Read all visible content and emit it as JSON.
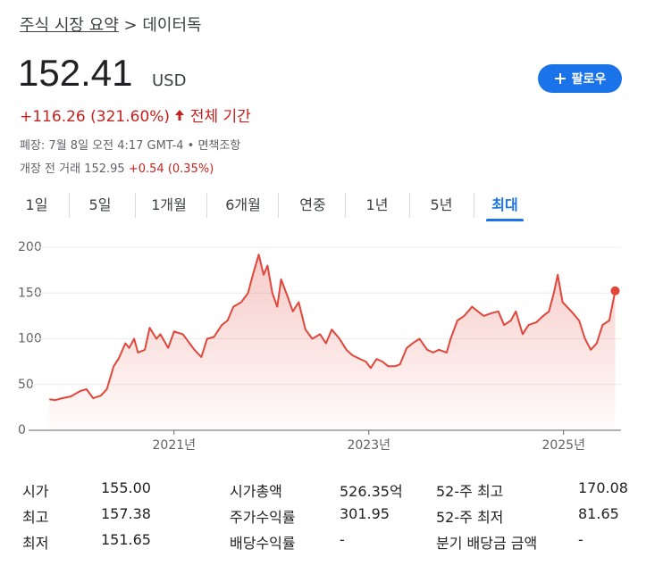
{
  "breadcrumb": {
    "parent": "주식 시장 요약",
    "separator": ">",
    "current": "데이터독"
  },
  "price": {
    "value": "152.41",
    "currency": "USD"
  },
  "follow_button": "팔로우",
  "change": {
    "amount": "+116.26",
    "percent": "(321.60%)",
    "period": "전체 기간"
  },
  "market_status": "폐장: 7월 8일 오전 4:17 GMT-4",
  "disclaimer": "면책조항",
  "premarket": {
    "label": "개장 전 거래",
    "price": "152.95",
    "change": "+0.54 (0.35%)"
  },
  "tabs": [
    "1일",
    "5일",
    "1개월",
    "6개월",
    "연중",
    "1년",
    "5년",
    "최대"
  ],
  "active_tab": 7,
  "stats": [
    [
      {
        "label": "시가",
        "value": "155.00"
      },
      {
        "label": "시가총액",
        "value": "526.35억"
      },
      {
        "label": "52-주 최고",
        "value": "170.08"
      }
    ],
    [
      {
        "label": "최고",
        "value": "157.38"
      },
      {
        "label": "주가수익률",
        "value": "301.95"
      },
      {
        "label": "52-주 최저",
        "value": "81.65"
      }
    ],
    [
      {
        "label": "최저",
        "value": "151.65"
      },
      {
        "label": "배당수익률",
        "value": "-"
      },
      {
        "label": "분기 배당금 금액",
        "value": "-"
      }
    ]
  ],
  "chart_data": {
    "type": "line",
    "color": "#e0463a",
    "area": true,
    "grid": true,
    "x": [
      2019.72,
      2019.78,
      2019.85,
      2019.94,
      2020.04,
      2020.1,
      2020.17,
      2020.25,
      2020.31,
      2020.38,
      2020.43,
      2020.5,
      2020.54,
      2020.59,
      2020.63,
      2020.7,
      2020.75,
      2020.82,
      2020.86,
      2020.94,
      2021.0,
      2021.09,
      2021.16,
      2021.21,
      2021.28,
      2021.34,
      2021.41,
      2021.49,
      2021.55,
      2021.61,
      2021.69,
      2021.76,
      2021.81,
      2021.87,
      2021.92,
      2021.96,
      2022.01,
      2022.06,
      2022.1,
      2022.17,
      2022.22,
      2022.28,
      2022.35,
      2022.42,
      2022.5,
      2022.56,
      2022.62,
      2022.7,
      2022.77,
      2022.83,
      2022.91,
      2022.97,
      2023.02,
      2023.08,
      2023.14,
      2023.2,
      2023.27,
      2023.32,
      2023.39,
      2023.45,
      2023.52,
      2023.6,
      2023.66,
      2023.72,
      2023.8,
      2023.84,
      2023.91,
      2023.98,
      2024.06,
      2024.12,
      2024.18,
      2024.26,
      2024.33,
      2024.39,
      2024.46,
      2024.51,
      2024.58,
      2024.64,
      2024.72,
      2024.79,
      2024.85,
      2024.9,
      2024.94,
      2024.99,
      2025.08,
      2025.16,
      2025.22,
      2025.28,
      2025.34,
      2025.4,
      2025.47,
      2025.53
    ],
    "values": [
      34,
      33,
      35,
      37,
      43,
      45,
      35,
      38,
      45,
      70,
      78,
      95,
      90,
      100,
      85,
      88,
      112,
      100,
      105,
      90,
      108,
      105,
      95,
      88,
      80,
      100,
      102,
      115,
      120,
      135,
      140,
      150,
      170,
      192,
      170,
      180,
      150,
      135,
      165,
      145,
      130,
      140,
      110,
      100,
      105,
      95,
      110,
      100,
      88,
      82,
      78,
      75,
      68,
      78,
      75,
      70,
      70,
      72,
      90,
      95,
      100,
      88,
      85,
      88,
      85,
      100,
      120,
      125,
      135,
      130,
      125,
      128,
      130,
      115,
      120,
      130,
      105,
      115,
      118,
      125,
      130,
      150,
      170,
      140,
      130,
      120,
      100,
      88,
      95,
      115,
      120,
      152.41
    ],
    "xlim": [
      2019.58,
      2025.59
    ],
    "ylim": [
      0,
      200
    ],
    "xticks": [
      {
        "value": 2021,
        "label": "2021년"
      },
      {
        "value": 2023,
        "label": "2023년"
      },
      {
        "value": 2025,
        "label": "2025년"
      }
    ],
    "yticks": [
      0,
      50,
      100,
      150,
      200
    ]
  }
}
